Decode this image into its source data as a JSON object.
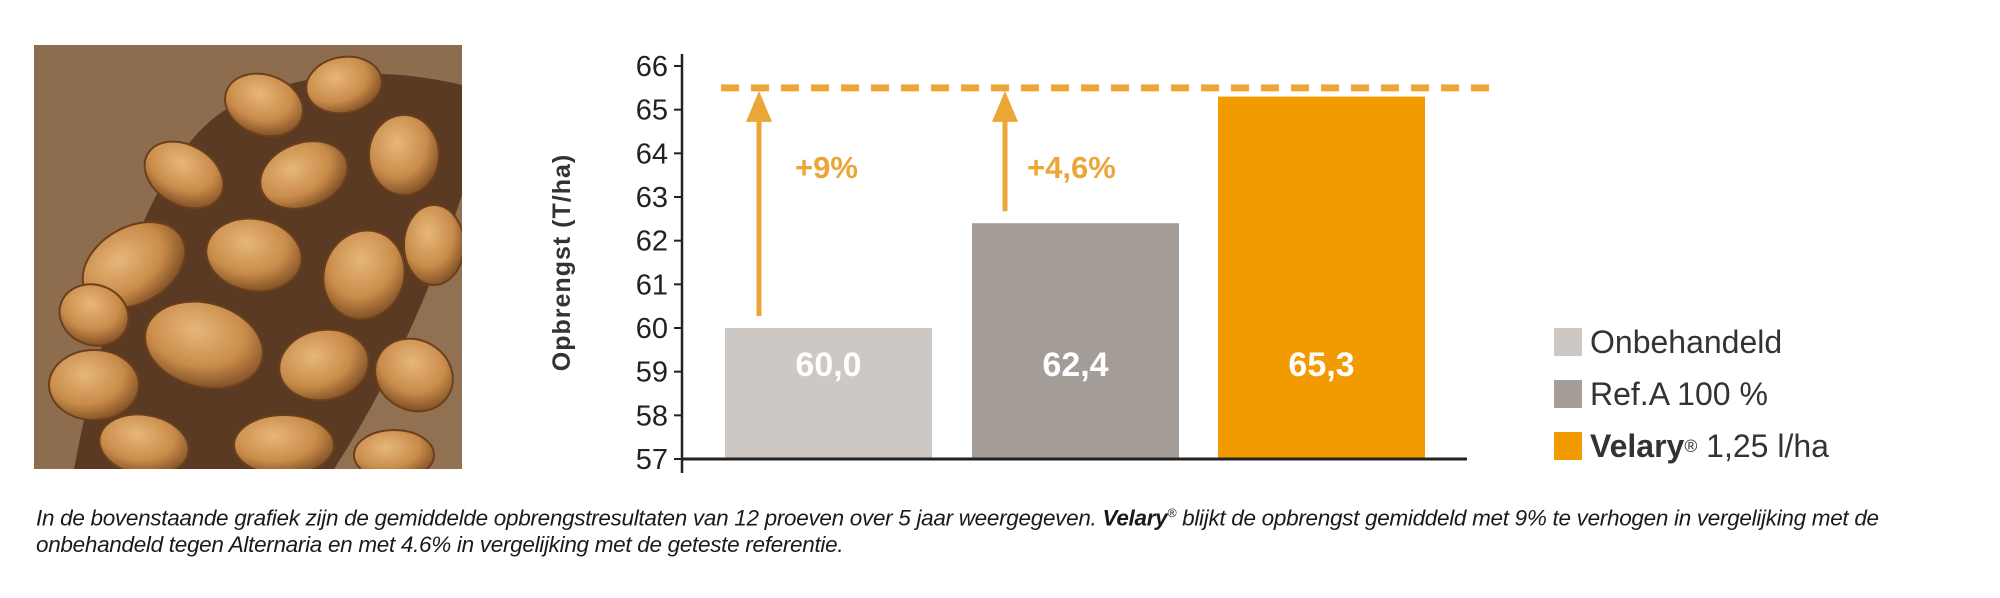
{
  "photo": {
    "alt": "potatoes in burlap sack"
  },
  "chart_data": {
    "type": "bar",
    "title": "",
    "ylabel": "Opbrengst (T/ha)",
    "xlabel": "",
    "ylim": [
      57,
      66
    ],
    "yticks": [
      "57",
      "58",
      "59",
      "60",
      "61",
      "62",
      "63",
      "64",
      "65",
      "66"
    ],
    "categories": [
      "Onbehandeld",
      "Ref.A 100 %",
      "Velary® 1,25 l/ha"
    ],
    "values": [
      60.0,
      62.4,
      65.3
    ],
    "data_labels": [
      "60,0",
      "62,4",
      "65,3"
    ],
    "colors": [
      "#cdc8c4",
      "#a39c97",
      "#f29b00"
    ],
    "annotation_color": "#eba637",
    "reference_line": 65.5,
    "annotations": [
      {
        "text": "+9%",
        "from_category": 0
      },
      {
        "text": "+4,6%",
        "from_category": 1
      }
    ]
  },
  "legend": {
    "items": [
      {
        "label": "Onbehandeld",
        "color": "#cdc8c4"
      },
      {
        "label": "Ref.A 100 %",
        "color": "#a39c97"
      },
      {
        "brand": "Velary",
        "reg": "®",
        "label": " 1,25 l/ha",
        "color": "#f29b00"
      }
    ]
  },
  "caption": {
    "part1": "In de bovenstaande grafiek zijn de gemiddelde opbrengstresultaten van 12 proeven over 5 jaar weergegeven. ",
    "brand": "Velary",
    "reg": "®",
    "part2": " blijkt de opbrengst gemiddeld met 9% te verhogen in vergelijking met de onbehandeld tegen Alternaria en met 4.6% in vergelijking met de geteste referentie."
  }
}
